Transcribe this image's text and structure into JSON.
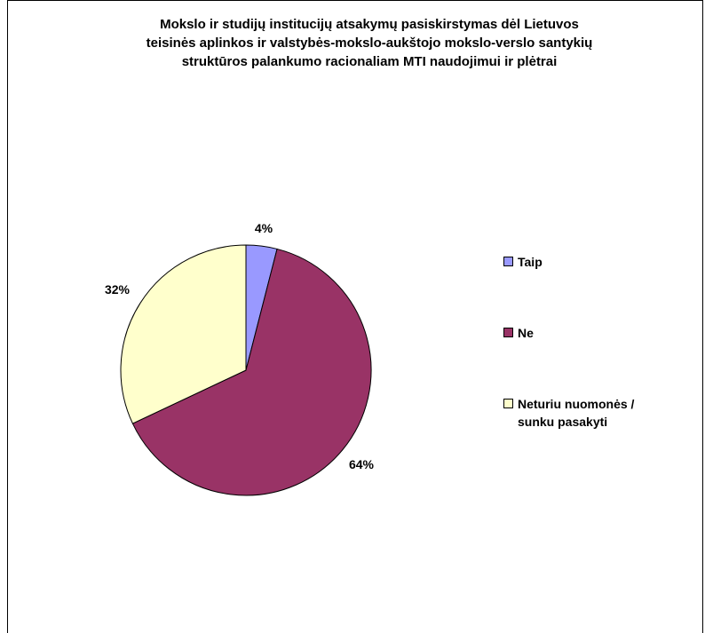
{
  "chart_data": {
    "type": "pie",
    "title": "Mokslo ir studijų institucijų atsakymų pasiskirstymas dėl Lietuvos\nteisinės aplinkos ir valstybės-mokslo-aukštojo mokslo-verslo santykių\nstruktūros palankumo racionaliam MTI naudojimui ir plėtrai",
    "legend_position": "right",
    "slices": [
      {
        "name": "Taip",
        "value": 4,
        "label": "4%",
        "color": "#9999ff"
      },
      {
        "name": "Ne",
        "value": 64,
        "label": "64%",
        "color": "#993366"
      },
      {
        "name": "Neturiu nuomonės /\nsunku pasakyti",
        "value": 32,
        "label": "32%",
        "color": "#ffffcc"
      }
    ]
  }
}
